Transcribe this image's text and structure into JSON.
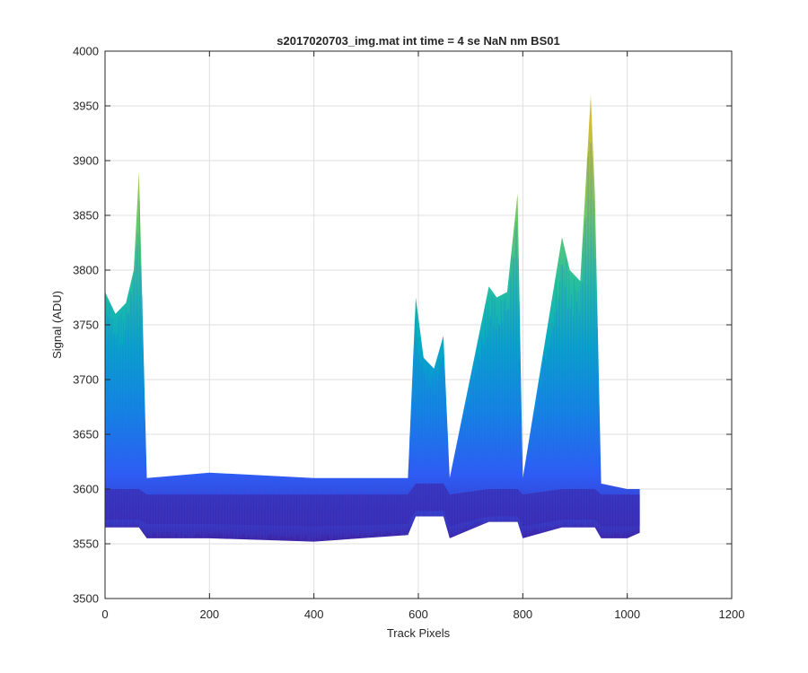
{
  "chart_data": {
    "type": "area",
    "title": "s2017020703_img.mat int time = 4 se  NaN nm BS01",
    "xlabel": "Track Pixels",
    "ylabel": "Signal (ADU)",
    "xlim": [
      0,
      1200
    ],
    "ylim": [
      3500,
      4000
    ],
    "xticks": [
      0,
      200,
      400,
      600,
      800,
      1000,
      1200
    ],
    "yticks": [
      3500,
      3550,
      3600,
      3650,
      3700,
      3750,
      3800,
      3850,
      3900,
      3950,
      4000
    ],
    "grid": true,
    "legend": "none",
    "x_extent": [
      1,
      1024
    ],
    "colormap": [
      "#3e26a8",
      "#2f5cf4",
      "#1188e0",
      "#06a8c6",
      "#24bfa0",
      "#68c86b",
      "#b4c43a",
      "#e8b82f"
    ],
    "series": [
      {
        "x": [
          0,
          20,
          40,
          55,
          65,
          80,
          200,
          400,
          580,
          595,
          610,
          630,
          648,
          660,
          735,
          750,
          770,
          790,
          800,
          875,
          890,
          910,
          930,
          938,
          950,
          1000,
          1024
        ],
        "upper": [
          3780,
          3760,
          3770,
          3800,
          3890,
          3610,
          3615,
          3610,
          3610,
          3775,
          3720,
          3710,
          3740,
          3610,
          3785,
          3775,
          3780,
          3870,
          3610,
          3830,
          3800,
          3790,
          3960,
          3870,
          3605,
          3600,
          3600
        ],
        "lower": [
          3565,
          3565,
          3565,
          3565,
          3565,
          3555,
          3555,
          3552,
          3558,
          3575,
          3575,
          3575,
          3575,
          3555,
          3570,
          3570,
          3570,
          3570,
          3555,
          3565,
          3565,
          3565,
          3565,
          3565,
          3555,
          3555,
          3560
        ],
        "core_upper": [
          3600,
          3600,
          3600,
          3600,
          3600,
          3595,
          3595,
          3595,
          3595,
          3605,
          3605,
          3605,
          3605,
          3595,
          3600,
          3600,
          3600,
          3600,
          3595,
          3600,
          3600,
          3600,
          3600,
          3600,
          3595,
          3595,
          3595
        ],
        "core_lower": [
          3572,
          3572,
          3572,
          3572,
          3572,
          3568,
          3568,
          3566,
          3568,
          3580,
          3580,
          3580,
          3580,
          3566,
          3575,
          3575,
          3575,
          3575,
          3566,
          3572,
          3572,
          3572,
          3572,
          3572,
          3566,
          3566,
          3566
        ]
      }
    ]
  }
}
